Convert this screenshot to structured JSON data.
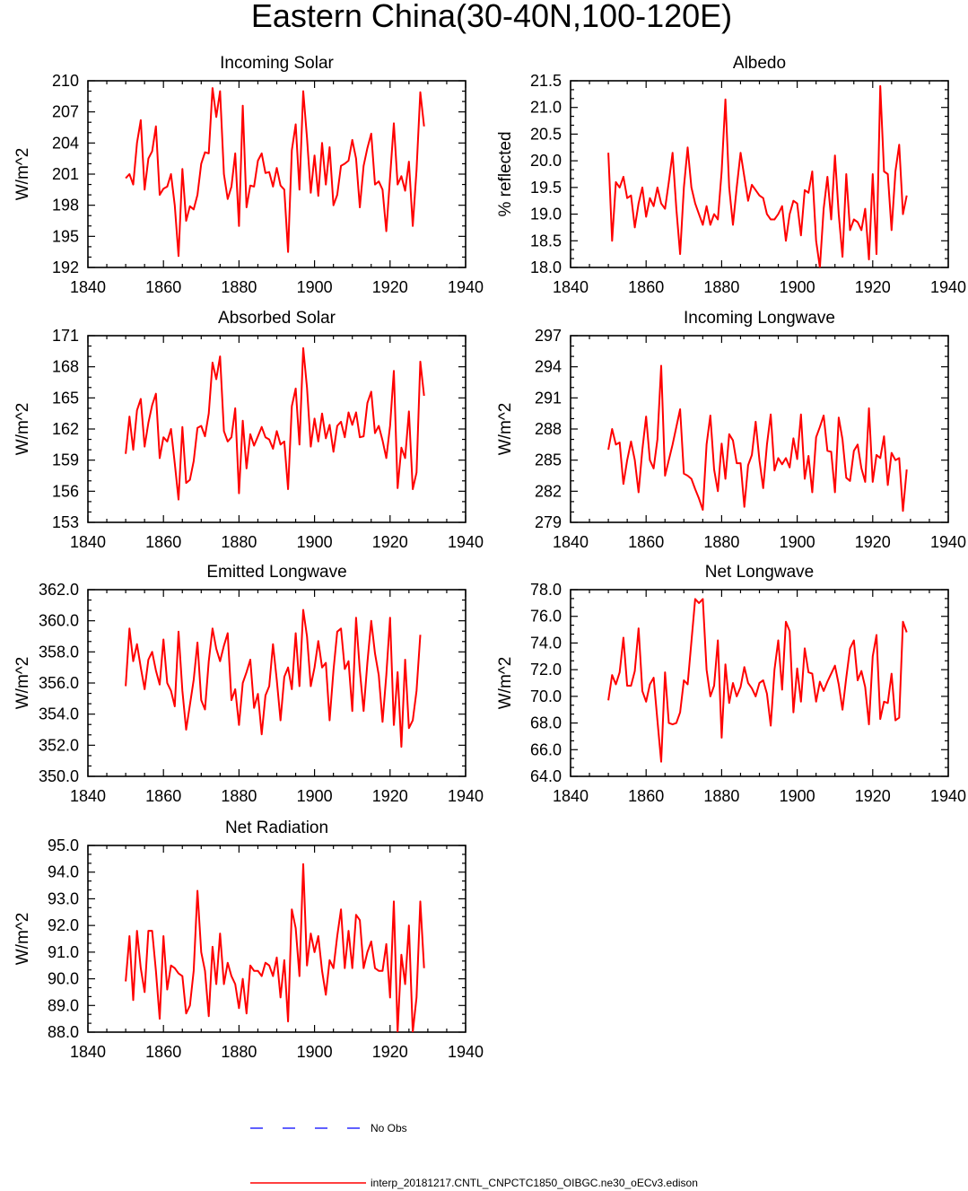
{
  "figure": {
    "title": "Eastern China(30-40N,100-120E)"
  },
  "legend": {
    "entries": [
      {
        "label": "No Obs",
        "color": "#0000ff",
        "style": "dashed"
      },
      {
        "label": "interp_20181217.CNTL_CNPCTC1850_OIBGC.ne30_oECv3.edison",
        "color": "#ff0000",
        "style": "solid"
      }
    ]
  },
  "chart_data": [
    {
      "type": "line",
      "title": "Incoming Solar",
      "ylabel": "W/m^2",
      "xlim": [
        1840,
        1940
      ],
      "ylim": [
        192,
        210
      ],
      "xticks": [
        1840,
        1860,
        1880,
        1900,
        1920,
        1940
      ],
      "yticks": [
        "192",
        "195",
        "198",
        "201",
        "204",
        "207",
        "210"
      ],
      "x_start": 1850,
      "series": [
        {
          "color": "#ff0000",
          "values": [
            200.6,
            201.0,
            200.0,
            204.0,
            206.2,
            199.5,
            202.5,
            203.2,
            205.6,
            199.0,
            199.6,
            199.8,
            201.0,
            198.0,
            193.1,
            201.5,
            196.5,
            197.9,
            197.6,
            199.0,
            202.0,
            203.1,
            203.0,
            209.3,
            206.5,
            209.0,
            201.0,
            198.6,
            199.8,
            203.0,
            196.0,
            207.6,
            197.8,
            199.9,
            199.8,
            202.3,
            203.0,
            201.1,
            201.2,
            199.8,
            201.6,
            199.9,
            199.5,
            193.5,
            203.3,
            205.8,
            199.5,
            209.0,
            204.5,
            199.2,
            202.8,
            198.9,
            204.0,
            200.0,
            203.6,
            198.0,
            199.0,
            201.8,
            202.0,
            202.3,
            204.3,
            202.5,
            197.8,
            201.8,
            203.5,
            204.9,
            200.0,
            200.3,
            199.5,
            195.5,
            200.7,
            205.9,
            200.0,
            200.8,
            199.4,
            202.2,
            196.0,
            201.4,
            208.9,
            205.6
          ]
        }
      ]
    },
    {
      "type": "line",
      "title": "Albedo",
      "ylabel": "% reflected",
      "xlim": [
        1840,
        1940
      ],
      "ylim": [
        18.0,
        21.5
      ],
      "xticks": [
        1840,
        1860,
        1880,
        1900,
        1920,
        1940
      ],
      "yticks": [
        "18.0",
        "18.5",
        "19.0",
        "19.5",
        "20.0",
        "20.5",
        "21.0",
        "21.5"
      ],
      "x_start": 1850,
      "series": [
        {
          "color": "#ff0000",
          "values": [
            20.15,
            18.5,
            19.6,
            19.5,
            19.7,
            19.3,
            19.35,
            18.75,
            19.2,
            19.5,
            18.95,
            19.3,
            19.15,
            19.5,
            19.2,
            19.1,
            19.6,
            20.15,
            19.1,
            18.25,
            19.5,
            20.25,
            19.5,
            19.2,
            19.0,
            18.8,
            19.15,
            18.8,
            19.0,
            18.9,
            19.8,
            21.15,
            19.5,
            18.8,
            19.5,
            20.15,
            19.7,
            19.25,
            19.55,
            19.45,
            19.35,
            19.3,
            19.0,
            18.9,
            18.9,
            19.0,
            19.15,
            18.5,
            19.0,
            19.25,
            19.2,
            18.6,
            19.45,
            19.4,
            19.8,
            18.5,
            18.0,
            19.1,
            19.7,
            18.9,
            20.1,
            19.0,
            18.2,
            19.75,
            18.7,
            18.9,
            18.85,
            18.7,
            19.1,
            18.15,
            19.75,
            18.25,
            21.4,
            19.8,
            19.75,
            18.7,
            19.8,
            20.3,
            19.0,
            19.35
          ]
        }
      ]
    },
    {
      "type": "line",
      "title": "Absorbed Solar",
      "ylabel": "W/m^2",
      "xlim": [
        1840,
        1940
      ],
      "ylim": [
        153,
        171
      ],
      "xticks": [
        1840,
        1860,
        1880,
        1900,
        1920,
        1940
      ],
      "yticks": [
        "153",
        "156",
        "159",
        "162",
        "165",
        "168",
        "171"
      ],
      "x_start": 1850,
      "series": [
        {
          "color": "#ff0000",
          "values": [
            159.6,
            163.2,
            160.0,
            163.8,
            164.9,
            160.3,
            162.6,
            164.3,
            165.4,
            159.2,
            161.2,
            160.8,
            162.0,
            158.7,
            155.2,
            162.2,
            156.8,
            157.1,
            158.9,
            162.1,
            162.3,
            161.3,
            163.5,
            168.4,
            166.8,
            169.0,
            161.8,
            160.8,
            161.2,
            164.0,
            155.8,
            162.8,
            158.2,
            161.5,
            160.4,
            161.3,
            162.2,
            161.2,
            161.0,
            160.1,
            161.8,
            160.5,
            160.8,
            156.2,
            164.2,
            165.9,
            160.5,
            169.8,
            166.0,
            160.3,
            163.0,
            160.8,
            163.5,
            161.1,
            162.4,
            159.8,
            162.3,
            162.7,
            161.2,
            163.6,
            162.4,
            163.6,
            161.2,
            161.3,
            164.5,
            165.6,
            161.6,
            162.3,
            160.9,
            159.2,
            162.3,
            167.6,
            156.3,
            160.2,
            159.2,
            163.7,
            156.2,
            157.8,
            168.5,
            165.2
          ]
        }
      ]
    },
    {
      "type": "line",
      "title": "Incoming Longwave",
      "ylabel": "W/m^2",
      "xlim": [
        1840,
        1940
      ],
      "ylim": [
        279,
        297
      ],
      "xticks": [
        1840,
        1860,
        1880,
        1900,
        1920,
        1940
      ],
      "yticks": [
        "279",
        "282",
        "285",
        "288",
        "291",
        "294",
        "297"
      ],
      "x_start": 1850,
      "series": [
        {
          "color": "#ff0000",
          "values": [
            286.0,
            288.0,
            286.5,
            286.7,
            282.7,
            285.0,
            286.8,
            285.0,
            281.9,
            286.0,
            289.2,
            285.0,
            284.2,
            287.0,
            294.1,
            283.5,
            285.0,
            286.5,
            288.2,
            289.9,
            283.7,
            283.5,
            283.2,
            282.2,
            281.3,
            280.2,
            286.5,
            289.3,
            284.1,
            282.0,
            286.6,
            283.2,
            287.5,
            286.9,
            284.7,
            284.7,
            280.5,
            284.5,
            285.5,
            288.7,
            285.0,
            282.3,
            286.5,
            289.4,
            284.0,
            285.2,
            284.6,
            285.2,
            284.3,
            287.1,
            285.1,
            289.4,
            283.2,
            285.4,
            281.9,
            287.2,
            288.2,
            289.3,
            285.9,
            285.8,
            281.9,
            289.1,
            287.0,
            283.3,
            283.0,
            285.9,
            286.5,
            284.2,
            282.9,
            290.0,
            282.9,
            285.5,
            285.2,
            287.3,
            282.6,
            285.7,
            285.0,
            285.2,
            280.1,
            284.1
          ]
        }
      ]
    },
    {
      "type": "line",
      "title": "Emitted Longwave",
      "ylabel": "W/m^2",
      "xlim": [
        1840,
        1940
      ],
      "ylim": [
        350.0,
        362.0
      ],
      "xticks": [
        1840,
        1860,
        1880,
        1900,
        1920,
        1940
      ],
      "yticks": [
        "350.0",
        "352.0",
        "354.0",
        "356.0",
        "358.0",
        "360.0",
        "362.0"
      ],
      "x_start": 1850,
      "series": [
        {
          "color": "#ff0000",
          "values": [
            355.8,
            359.5,
            357.4,
            358.5,
            357.0,
            355.6,
            357.5,
            358.0,
            356.8,
            355.9,
            358.8,
            356.0,
            355.5,
            354.5,
            359.3,
            355.5,
            353.0,
            354.6,
            356.2,
            358.6,
            354.9,
            354.3,
            357.4,
            359.5,
            358.2,
            357.4,
            358.4,
            359.2,
            354.9,
            355.6,
            353.3,
            356.0,
            356.7,
            357.5,
            354.4,
            355.3,
            352.7,
            355.2,
            355.8,
            358.5,
            356.2,
            353.6,
            356.4,
            357.0,
            355.6,
            359.2,
            355.8,
            360.7,
            359.0,
            355.8,
            357.0,
            358.7,
            357.0,
            357.3,
            353.6,
            356.8,
            359.3,
            359.5,
            356.9,
            357.4,
            354.2,
            360.2,
            356.8,
            354.2,
            357.3,
            360.0,
            357.9,
            356.5,
            353.5,
            356.5,
            360.2,
            353.3,
            356.7,
            351.9,
            357.5,
            353.1,
            353.6,
            355.5,
            359.1
          ]
        }
      ]
    },
    {
      "type": "line",
      "title": "Net Longwave",
      "ylabel": "W/m^2",
      "xlim": [
        1840,
        1940
      ],
      "ylim": [
        64.0,
        78.0
      ],
      "xticks": [
        1840,
        1860,
        1880,
        1900,
        1920,
        1940
      ],
      "yticks": [
        "64.0",
        "66.0",
        "68.0",
        "70.0",
        "72.0",
        "74.0",
        "76.0",
        "78.0"
      ],
      "x_start": 1850,
      "series": [
        {
          "color": "#ff0000",
          "values": [
            69.7,
            71.6,
            70.9,
            71.8,
            74.4,
            70.8,
            70.8,
            71.9,
            75.1,
            70.4,
            69.6,
            70.9,
            71.4,
            68.2,
            65.1,
            71.8,
            68.0,
            67.9,
            68.0,
            68.8,
            71.2,
            70.9,
            74.1,
            77.3,
            77.0,
            77.3,
            72.0,
            70.0,
            70.8,
            74.2,
            66.9,
            72.4,
            69.5,
            71.0,
            70.0,
            70.7,
            72.2,
            71.0,
            70.6,
            70.0,
            71.0,
            71.2,
            70.2,
            67.8,
            72.0,
            74.2,
            70.5,
            75.6,
            74.9,
            68.8,
            72.1,
            69.6,
            73.6,
            71.8,
            71.7,
            69.6,
            71.1,
            70.4,
            71.1,
            71.7,
            72.3,
            70.9,
            69.0,
            71.4,
            73.6,
            74.2,
            71.2,
            71.9,
            70.7,
            67.9,
            73.0,
            74.6,
            68.3,
            69.6,
            69.5,
            71.7,
            68.2,
            68.4,
            75.6,
            74.8
          ]
        }
      ]
    },
    {
      "type": "line",
      "title": "Net Radiation",
      "ylabel": "W/m^2",
      "xlim": [
        1840,
        1940
      ],
      "ylim": [
        88.0,
        95.0
      ],
      "xticks": [
        1840,
        1860,
        1880,
        1900,
        1920,
        1940
      ],
      "yticks": [
        "88.0",
        "89.0",
        "90.0",
        "91.0",
        "92.0",
        "93.0",
        "94.0",
        "95.0"
      ],
      "x_start": 1850,
      "series": [
        {
          "color": "#ff0000",
          "values": [
            89.9,
            91.6,
            89.2,
            91.8,
            90.4,
            89.5,
            91.8,
            91.8,
            90.3,
            88.5,
            91.6,
            89.6,
            90.5,
            90.4,
            90.2,
            90.1,
            88.7,
            89.0,
            90.3,
            93.3,
            91.0,
            90.3,
            88.6,
            91.2,
            89.8,
            91.7,
            89.8,
            90.6,
            90.1,
            89.8,
            88.9,
            90.0,
            88.7,
            90.5,
            90.3,
            90.3,
            90.1,
            90.6,
            90.5,
            90.1,
            90.8,
            89.3,
            90.7,
            88.4,
            92.6,
            91.9,
            90.1,
            94.3,
            90.5,
            91.7,
            91.0,
            91.6,
            90.3,
            89.4,
            90.7,
            90.4,
            91.6,
            92.6,
            90.4,
            91.8,
            90.4,
            92.4,
            92.2,
            90.4,
            91.0,
            91.4,
            90.4,
            90.3,
            90.3,
            91.3,
            89.3,
            92.9,
            88.0,
            90.9,
            89.8,
            92.0,
            88.0,
            89.3,
            92.9,
            90.4
          ]
        }
      ]
    }
  ]
}
